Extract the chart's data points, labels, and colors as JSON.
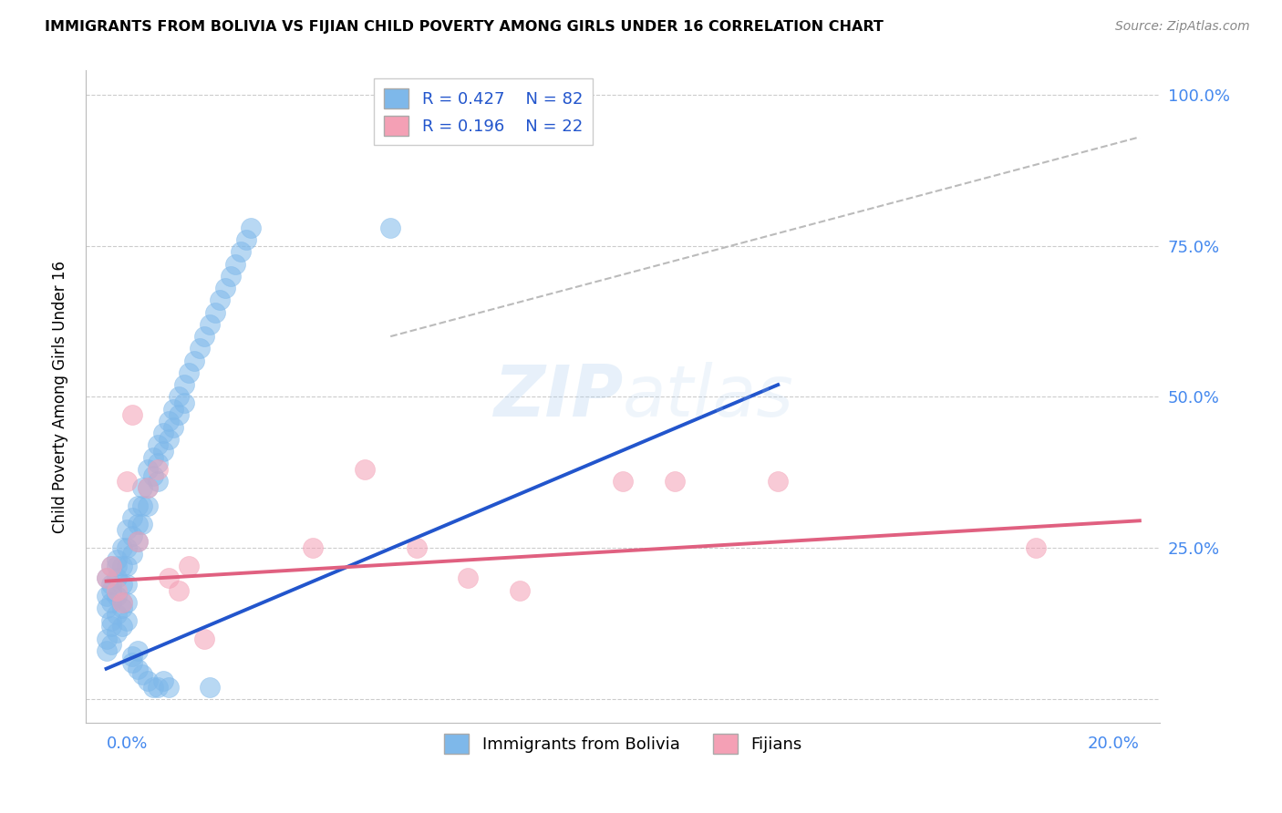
{
  "title": "IMMIGRANTS FROM BOLIVIA VS FIJIAN CHILD POVERTY AMONG GIRLS UNDER 16 CORRELATION CHART",
  "source": "Source: ZipAtlas.com",
  "ylabel": "Child Poverty Among Girls Under 16",
  "legend_label_bolivia": "Immigrants from Bolivia",
  "legend_label_fijian": "Fijians",
  "R_bolivia": 0.427,
  "N_bolivia": 82,
  "R_fijian": 0.196,
  "N_fijian": 22,
  "color_bolivia": "#7EB8EA",
  "color_fijian": "#F4A0B5",
  "line_color_bolivia": "#2255CC",
  "line_color_fijian": "#E06080",
  "dashed_color": "#BBBBBB",
  "xlim": [
    0.0,
    0.2
  ],
  "ylim": [
    0.0,
    1.0
  ],
  "bolivia_line_x": [
    0.0,
    0.13
  ],
  "bolivia_line_y": [
    0.05,
    0.52
  ],
  "fijian_line_x": [
    0.0,
    0.2
  ],
  "fijian_line_y": [
    0.195,
    0.295
  ],
  "dashed_line_x": [
    0.055,
    0.2
  ],
  "dashed_line_y": [
    0.6,
    0.93
  ],
  "bolivia_pts_x": [
    0.0,
    0.0,
    0.001,
    0.0,
    0.001,
    0.001,
    0.002,
    0.001,
    0.001,
    0.002,
    0.002,
    0.002,
    0.003,
    0.003,
    0.003,
    0.003,
    0.004,
    0.004,
    0.004,
    0.004,
    0.005,
    0.005,
    0.005,
    0.006,
    0.006,
    0.006,
    0.007,
    0.007,
    0.007,
    0.008,
    0.008,
    0.008,
    0.009,
    0.009,
    0.01,
    0.01,
    0.01,
    0.011,
    0.011,
    0.012,
    0.012,
    0.013,
    0.013,
    0.014,
    0.014,
    0.015,
    0.015,
    0.016,
    0.017,
    0.018,
    0.019,
    0.02,
    0.021,
    0.022,
    0.023,
    0.024,
    0.025,
    0.026,
    0.027,
    0.028,
    0.0,
    0.0,
    0.001,
    0.001,
    0.002,
    0.002,
    0.003,
    0.003,
    0.004,
    0.004,
    0.005,
    0.005,
    0.006,
    0.006,
    0.007,
    0.008,
    0.009,
    0.01,
    0.011,
    0.012,
    0.02,
    0.055
  ],
  "bolivia_pts_y": [
    0.2,
    0.17,
    0.22,
    0.15,
    0.19,
    0.16,
    0.22,
    0.18,
    0.13,
    0.23,
    0.2,
    0.17,
    0.25,
    0.22,
    0.19,
    0.16,
    0.28,
    0.25,
    0.22,
    0.19,
    0.3,
    0.27,
    0.24,
    0.32,
    0.29,
    0.26,
    0.35,
    0.32,
    0.29,
    0.38,
    0.35,
    0.32,
    0.4,
    0.37,
    0.42,
    0.39,
    0.36,
    0.44,
    0.41,
    0.46,
    0.43,
    0.48,
    0.45,
    0.5,
    0.47,
    0.52,
    0.49,
    0.54,
    0.56,
    0.58,
    0.6,
    0.62,
    0.64,
    0.66,
    0.68,
    0.7,
    0.72,
    0.74,
    0.76,
    0.78,
    0.1,
    0.08,
    0.12,
    0.09,
    0.14,
    0.11,
    0.15,
    0.12,
    0.16,
    0.13,
    0.07,
    0.06,
    0.08,
    0.05,
    0.04,
    0.03,
    0.02,
    0.02,
    0.03,
    0.02,
    0.02,
    0.78
  ],
  "fijian_pts_x": [
    0.0,
    0.001,
    0.002,
    0.003,
    0.004,
    0.005,
    0.006,
    0.008,
    0.01,
    0.012,
    0.014,
    0.016,
    0.04,
    0.05,
    0.06,
    0.07,
    0.08,
    0.1,
    0.11,
    0.13,
    0.18,
    0.019
  ],
  "fijian_pts_y": [
    0.2,
    0.22,
    0.18,
    0.16,
    0.36,
    0.47,
    0.26,
    0.35,
    0.38,
    0.2,
    0.18,
    0.22,
    0.25,
    0.38,
    0.25,
    0.2,
    0.18,
    0.36,
    0.36,
    0.36,
    0.25,
    0.1
  ]
}
